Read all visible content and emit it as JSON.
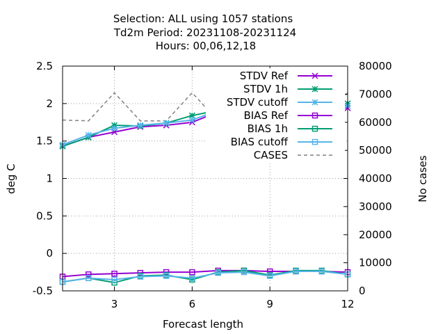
{
  "chart_data": {
    "type": "line",
    "title_lines": [
      "Selection: ALL using  1057 stations",
      "Td2m   Period: 20231108-20231124",
      "Hours:  00,06,12,18"
    ],
    "xlabel": "Forecast length",
    "ylabel": "deg C",
    "y2label": "No cases",
    "xlim": [
      1,
      12
    ],
    "ylim": [
      -0.5,
      2.5
    ],
    "y2lim": [
      0,
      80000
    ],
    "x_ticks": [
      3,
      6,
      9,
      12
    ],
    "y_ticks": [
      -0.5,
      0,
      0.5,
      1,
      1.5,
      2,
      2.5
    ],
    "y_tick_labels": [
      "-0.5",
      "0",
      "0.5",
      "1",
      "1.5",
      "2",
      "2.5"
    ],
    "y2_ticks": [
      0,
      10000,
      20000,
      30000,
      40000,
      50000,
      60000,
      70000,
      80000
    ],
    "grid": true,
    "legend_position": "top-right",
    "x": [
      1,
      2,
      3,
      4,
      5,
      6,
      7,
      8,
      9,
      10,
      11,
      12
    ],
    "series": [
      {
        "name": "STDV Ref",
        "axis": "y",
        "color": "#9400d3",
        "marker": "x",
        "values": [
          1.43,
          1.55,
          1.62,
          1.69,
          1.71,
          1.75,
          1.89,
          1.92,
          1.92,
          1.94,
          1.94,
          1.94
        ]
      },
      {
        "name": "STDV 1h",
        "axis": "y",
        "color": "#009e73",
        "marker": "star",
        "values": [
          1.43,
          1.55,
          1.71,
          1.7,
          1.74,
          1.84,
          1.91,
          1.95,
          1.98,
          1.95,
          1.96,
          2.0
        ]
      },
      {
        "name": "STDV cutoff",
        "axis": "y",
        "color": "#56b4e9",
        "marker": "star",
        "values": [
          1.45,
          1.58,
          1.67,
          1.71,
          1.74,
          1.78,
          1.91,
          1.93,
          1.94,
          1.95,
          1.96,
          1.97
        ]
      },
      {
        "name": "BIAS Ref",
        "axis": "y",
        "color": "#9400d3",
        "marker": "square",
        "values": [
          -0.31,
          -0.28,
          -0.27,
          -0.26,
          -0.25,
          -0.25,
          -0.23,
          -0.23,
          -0.24,
          -0.24,
          -0.24,
          -0.25
        ]
      },
      {
        "name": "BIAS 1h",
        "axis": "y",
        "color": "#009e73",
        "marker": "square",
        "values": [
          -0.38,
          -0.33,
          -0.39,
          -0.3,
          -0.29,
          -0.35,
          -0.25,
          -0.23,
          -0.29,
          -0.23,
          -0.23,
          -0.28
        ]
      },
      {
        "name": "BIAS cutoff",
        "axis": "y",
        "color": "#56b4e9",
        "marker": "square",
        "values": [
          -0.38,
          -0.33,
          -0.35,
          -0.31,
          -0.3,
          -0.33,
          -0.26,
          -0.25,
          -0.3,
          -0.24,
          -0.24,
          -0.28
        ]
      },
      {
        "name": "CASES",
        "axis": "y2",
        "color": "#808080",
        "marker": "none",
        "dashed": true,
        "values": [
          60800,
          60500,
          70500,
          60500,
          60500,
          70500,
          60500,
          60500,
          70500,
          60500,
          60000,
          70500
        ]
      }
    ]
  }
}
